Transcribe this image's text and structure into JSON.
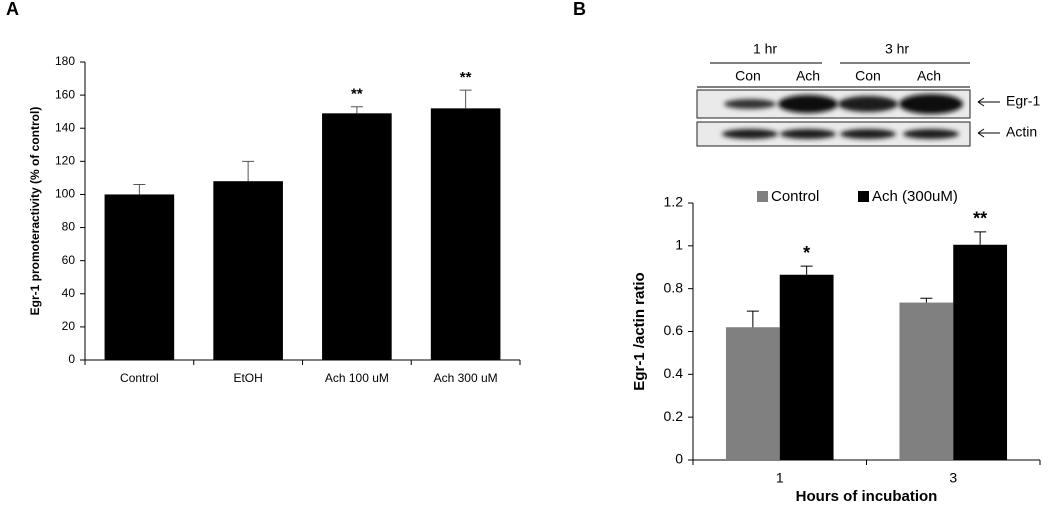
{
  "chart_data": [
    {
      "type": "bar",
      "panel": "A",
      "y_label": "Egr-1 promoteractivity (% of control)",
      "categories": [
        "Control",
        "EtOH",
        "Ach 100 uM",
        "Ach 300 uM"
      ],
      "values": [
        100,
        108,
        149,
        152
      ],
      "errors": [
        6,
        12,
        4,
        11
      ],
      "significance": [
        null,
        null,
        "**",
        "**"
      ],
      "color": "#000000",
      "ylim": [
        0,
        180
      ],
      "yticks": [
        0,
        20,
        40,
        60,
        80,
        100,
        120,
        140,
        160,
        180
      ]
    },
    {
      "type": "bar",
      "panel": "B",
      "x_label": "Hours of incubation",
      "y_label": "Egr-1 /actin ratio",
      "categories": [
        "1",
        "3"
      ],
      "series": [
        {
          "name": "Control",
          "color": "#808080",
          "values": [
            0.62,
            0.735
          ],
          "errors": [
            0.075,
            0.02
          ],
          "significance": [
            null,
            null
          ]
        },
        {
          "name": "Ach (300uM)",
          "color": "#000000",
          "values": [
            0.865,
            1.005
          ],
          "errors": [
            0.04,
            0.06
          ],
          "significance": [
            "*",
            "**"
          ]
        }
      ],
      "legend": "top",
      "ylim": [
        0,
        1.2
      ],
      "yticks": [
        0,
        0.2,
        0.4,
        0.6,
        0.8,
        1,
        1.2
      ],
      "blot": {
        "time_labels": [
          "1 hr",
          "3 hr"
        ],
        "lane_labels": [
          "Con",
          "Ach",
          "Con",
          "Ach"
        ],
        "band_labels": [
          "Egr-1",
          "Actin"
        ]
      }
    }
  ]
}
